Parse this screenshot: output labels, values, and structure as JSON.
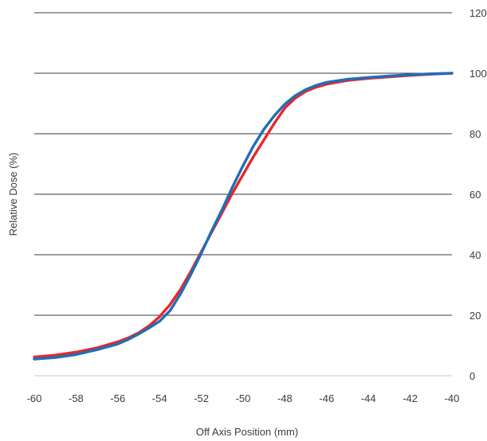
{
  "chart_data": {
    "type": "line",
    "title": "",
    "xlabel": "Off Axis Position (mm)",
    "ylabel": "Relative Dose (%)",
    "xlim": [
      -60,
      -40
    ],
    "ylim": [
      0,
      120
    ],
    "x_ticks": [
      "-60",
      "-58",
      "-56",
      "-54",
      "-52",
      "-50",
      "-48",
      "-46",
      "-44",
      "-42",
      "-40"
    ],
    "y_ticks": [
      "0",
      "20",
      "40",
      "60",
      "80",
      "100",
      "120"
    ],
    "y_axis_side": "right",
    "grid": "horizontal",
    "legend": "none",
    "series": [
      {
        "color": "#e8262d",
        "points": [
          [
            -60,
            6.2
          ],
          [
            -59,
            6.8
          ],
          [
            -58,
            7.8
          ],
          [
            -57,
            9.2
          ],
          [
            -56,
            11.2
          ],
          [
            -55.5,
            12.5
          ],
          [
            -55,
            14.2
          ],
          [
            -54.5,
            16.5
          ],
          [
            -54,
            19.5
          ],
          [
            -53.5,
            23.5
          ],
          [
            -53,
            28.5
          ],
          [
            -52.5,
            34.5
          ],
          [
            -52,
            41
          ],
          [
            -51.5,
            47.5
          ],
          [
            -51,
            54
          ],
          [
            -50.5,
            60.5
          ],
          [
            -50,
            66.5
          ],
          [
            -49.5,
            72.5
          ],
          [
            -49,
            78
          ],
          [
            -48.5,
            83.5
          ],
          [
            -48,
            88.5
          ],
          [
            -47.5,
            91.8
          ],
          [
            -47,
            94
          ],
          [
            -46.5,
            95.4
          ],
          [
            -46,
            96.4
          ],
          [
            -45,
            97.6
          ],
          [
            -44,
            98.3
          ],
          [
            -43,
            98.8
          ],
          [
            -42,
            99.3
          ],
          [
            -41,
            99.7
          ],
          [
            -40,
            100
          ]
        ]
      },
      {
        "color": "#1f6fb5",
        "points": [
          [
            -60,
            5.5
          ],
          [
            -59,
            6.0
          ],
          [
            -58,
            7.0
          ],
          [
            -57,
            8.6
          ],
          [
            -56,
            10.5
          ],
          [
            -55.5,
            12.0
          ],
          [
            -55,
            13.8
          ],
          [
            -54.5,
            15.8
          ],
          [
            -54,
            18.0
          ],
          [
            -53.5,
            21.5
          ],
          [
            -53,
            27.0
          ],
          [
            -52.5,
            33.5
          ],
          [
            -52,
            40.5
          ],
          [
            -51.5,
            48.0
          ],
          [
            -51,
            55.0
          ],
          [
            -50.5,
            62.5
          ],
          [
            -50,
            69.5
          ],
          [
            -49.5,
            76.0
          ],
          [
            -49,
            81.5
          ],
          [
            -48.5,
            86.0
          ],
          [
            -48,
            89.8
          ],
          [
            -47.5,
            92.6
          ],
          [
            -47,
            94.6
          ],
          [
            -46.5,
            96.0
          ],
          [
            -46,
            97.0
          ],
          [
            -45,
            98.0
          ],
          [
            -44,
            98.6
          ],
          [
            -43,
            99.1
          ],
          [
            -42,
            99.5
          ],
          [
            -41,
            99.8
          ],
          [
            -40,
            100
          ]
        ]
      }
    ]
  }
}
